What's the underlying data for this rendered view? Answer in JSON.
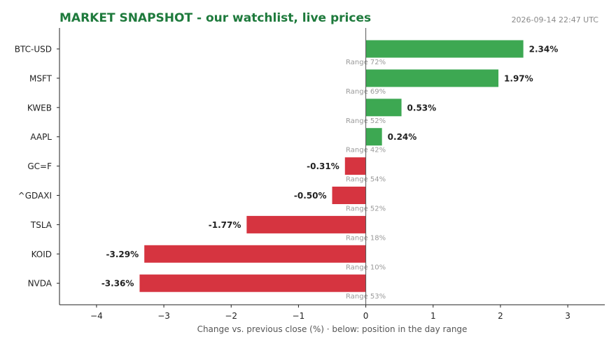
{
  "chart_data": {
    "type": "bar",
    "orientation": "horizontal",
    "title": "MARKET SNAPSHOT - our watchlist, live prices",
    "timestamp": "2026-09-14 22:47 UTC",
    "xlabel": "Change vs. previous close (%)  ·  below: position in the day range",
    "ylabel": "",
    "xlim": [
      -4.55,
      3.55
    ],
    "xticks": [
      -4,
      -3,
      -2,
      -1,
      0,
      1,
      2,
      3
    ],
    "xtick_labels": [
      "−4",
      "−3",
      "−2",
      "−1",
      "0",
      "1",
      "2",
      "3"
    ],
    "grid": false,
    "range_prefix": "Range ",
    "colors": {
      "positive": "#3da852",
      "negative": "#d63440",
      "title": "#1e7a3c"
    },
    "categories": [
      "BTC-USD",
      "MSFT",
      "KWEB",
      "AAPL",
      "GC=F",
      "^GDAXI",
      "TSLA",
      "KOID",
      "NVDA"
    ],
    "values": [
      2.34,
      1.97,
      0.53,
      0.24,
      -0.31,
      -0.5,
      -1.77,
      -3.29,
      -3.36
    ],
    "value_labels": [
      "2.34%",
      "1.97%",
      "0.53%",
      "0.24%",
      "-0.31%",
      "-0.50%",
      "-1.77%",
      "-3.29%",
      "-3.36%"
    ],
    "day_range_position_pct": [
      72,
      69,
      52,
      42,
      54,
      52,
      18,
      10,
      53
    ]
  }
}
